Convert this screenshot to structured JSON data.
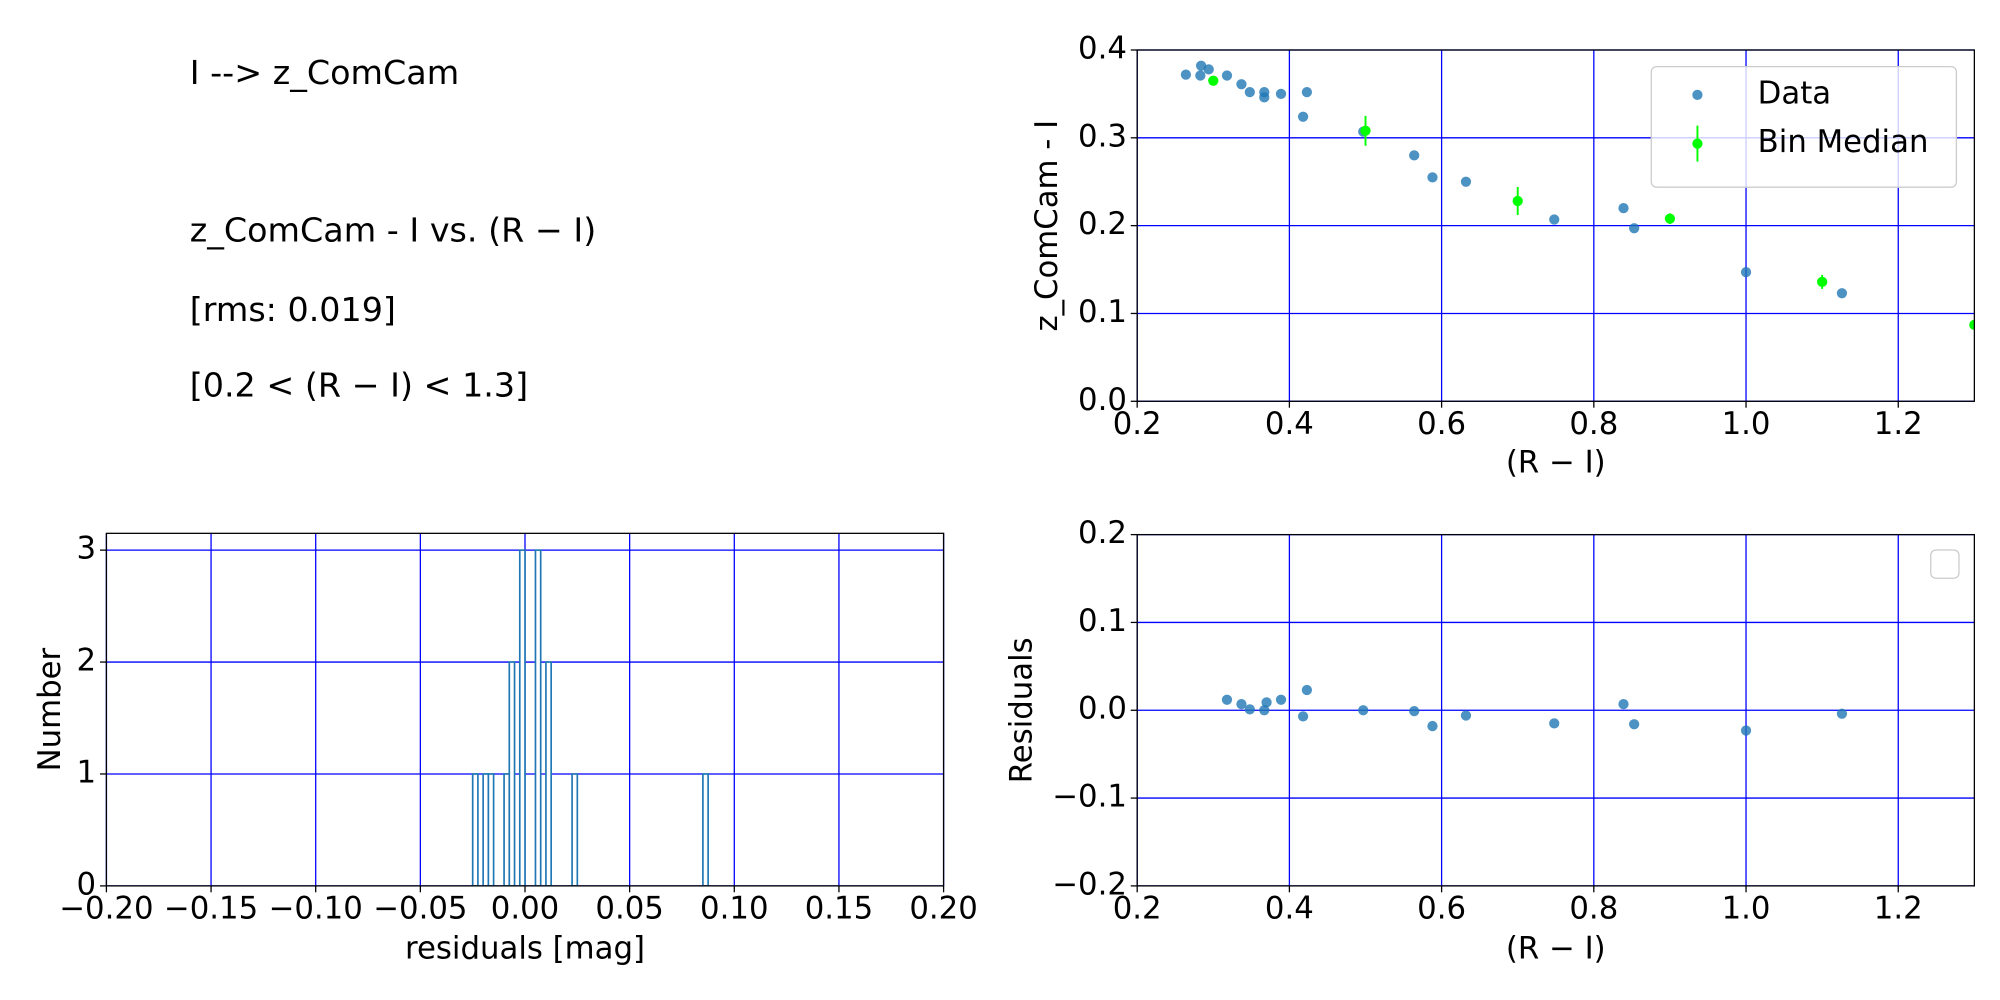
{
  "chart_data": [
    {
      "type": "text",
      "lines": [
        "I --> z_ComCam",
        "z_ComCam - I vs. (R − I)",
        "[rms: 0.019]",
        "[0.2 < (R − I) < 1.3]"
      ]
    },
    {
      "type": "scatter",
      "xlabel": "(R − I)",
      "ylabel": "z_ComCam - I",
      "xlim": [
        0.2,
        1.3
      ],
      "ylim": [
        0,
        0.4
      ],
      "xticks": [
        0.2,
        0.4,
        0.6,
        0.8,
        {
          "value": 1,
          "label": "1.0"
        },
        1.2
      ],
      "yticks": [
        {
          "value": 0,
          "label": "0.0"
        },
        0.1,
        0.2,
        0.3,
        0.4
      ],
      "grid": true,
      "grid_color": "#0000ff",
      "legend": "upper right",
      "series": [
        {
          "name": "Data",
          "color": "#1f77b4",
          "x": [
            0.264,
            0.284,
            0.283,
            0.294,
            0.318,
            0.337,
            0.348,
            0.367,
            0.367,
            0.389,
            0.418,
            0.423,
            0.497,
            0.564,
            0.588,
            0.632,
            0.748,
            0.839,
            0.853,
            1.0,
            1.126
          ],
          "values": [
            0.372,
            0.382,
            0.371,
            0.378,
            0.371,
            0.361,
            0.352,
            0.352,
            0.346,
            0.35,
            0.324,
            0.352,
            0.307,
            0.28,
            0.255,
            0.25,
            0.207,
            0.22,
            0.197,
            0.147,
            0.123
          ]
        },
        {
          "name": "Bin Median",
          "color": "#00ff00",
          "x": [
            0.3,
            0.5,
            0.7,
            0.9,
            1.1,
            1.3
          ],
          "values": [
            0.365,
            0.308,
            0.228,
            0.208,
            0.136,
            0.087
          ],
          "errors": [
            0.005,
            0.017,
            0.016,
            0.006,
            0.008,
            0.005
          ]
        }
      ]
    },
    {
      "type": "histogram",
      "xlabel": "residuals [mag]",
      "ylabel": "Number",
      "xlim": [
        -0.2,
        0.2
      ],
      "ylim": [
        0,
        3.15
      ],
      "xticks": [
        {
          "value": -0.2,
          "label": "−0.20"
        },
        {
          "value": -0.15,
          "label": "−0.15"
        },
        {
          "value": -0.1,
          "label": "−0.10"
        },
        {
          "value": -0.05,
          "label": "−0.05"
        },
        {
          "value": 0,
          "label": "0.00"
        },
        {
          "value": 0.05,
          "label": "0.05"
        },
        {
          "value": 0.1,
          "label": "0.10"
        },
        {
          "value": 0.15,
          "label": "0.15"
        },
        {
          "value": 0.2,
          "label": "0.20"
        }
      ],
      "yticks": [
        0,
        1,
        2,
        3
      ],
      "grid": true,
      "grid_color": "#0000ff",
      "color": "#1f77b4",
      "bins": [
        -0.025,
        -0.0225,
        -0.02,
        -0.0175,
        -0.015,
        -0.0125,
        -0.01,
        -0.0075,
        -0.005,
        -0.0025,
        0,
        0.0025,
        0.005,
        0.0075,
        0.01,
        0.0125,
        0.015,
        0.0175,
        0.02,
        0.0225,
        0.025,
        0.0275,
        0.03,
        0.0325,
        0.035,
        0.0375,
        0.04,
        0.0425,
        0.045,
        0.0475,
        0.05,
        0.0525,
        0.055,
        0.0575,
        0.06,
        0.0625,
        0.065,
        0.0675,
        0.07,
        0.0725,
        0.075,
        0.0775,
        0.08,
        0.0825,
        0.085,
        0.0875
      ],
      "counts": [
        1,
        0,
        1,
        1,
        0,
        0,
        1,
        2,
        0,
        3,
        0,
        0,
        3,
        0,
        2,
        0,
        0,
        0,
        0,
        1,
        0,
        0,
        0,
        0,
        0,
        0,
        0,
        0,
        0,
        0,
        0,
        0,
        0,
        0,
        0,
        0,
        0,
        0,
        0,
        0,
        0,
        0,
        0,
        0,
        1
      ]
    },
    {
      "type": "scatter",
      "xlabel": "(R − I)",
      "ylabel": "Residuals",
      "xlim": [
        0.2,
        1.3
      ],
      "ylim": [
        -0.2,
        0.2
      ],
      "xticks": [
        0.2,
        0.4,
        0.6,
        0.8,
        {
          "value": 1,
          "label": "1.0"
        },
        1.2
      ],
      "yticks": [
        {
          "value": -0.2,
          "label": "−0.2"
        },
        {
          "value": -0.1,
          "label": "−0.1"
        },
        {
          "value": 0,
          "label": "0.0"
        },
        0.1,
        0.2
      ],
      "grid": true,
      "grid_color": "#0000ff",
      "legend": "upper right",
      "series": [
        {
          "color": "#1f77b4",
          "x": [
            0.318,
            0.337,
            0.348,
            0.367,
            0.37,
            0.389,
            0.418,
            0.423,
            0.497,
            0.564,
            0.588,
            0.632,
            0.748,
            0.839,
            0.853,
            1.0,
            1.126
          ],
          "values": [
            0.012,
            0.007,
            0.001,
            0.0,
            0.009,
            0.012,
            -0.007,
            0.023,
            0.0,
            -0.001,
            -0.018,
            -0.006,
            -0.015,
            0.007,
            -0.016,
            -0.023,
            -0.004
          ]
        }
      ]
    }
  ]
}
